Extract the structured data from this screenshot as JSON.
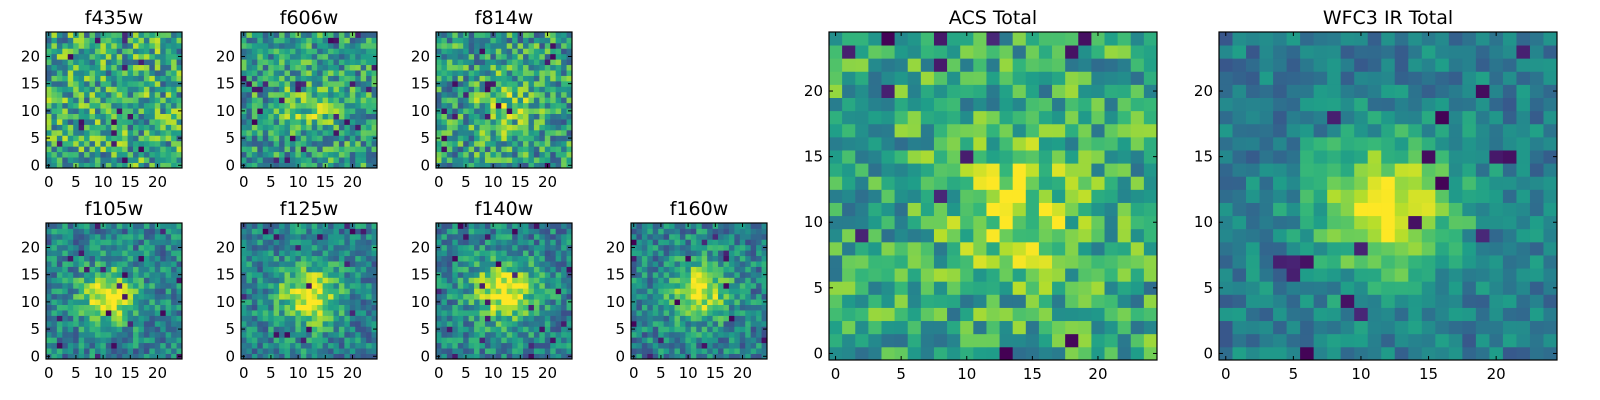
{
  "chart_data": [
    {
      "id": "f435w",
      "type": "heatmap",
      "title": "f435w",
      "grid_size": 25,
      "xlim": [
        -0.5,
        24.5
      ],
      "ylim": [
        -0.5,
        24.5
      ],
      "xticks": [
        0,
        5,
        10,
        15,
        20
      ],
      "yticks": [
        0,
        5,
        10,
        15,
        20
      ],
      "tick_labels": [
        "0",
        "5",
        "10",
        "15",
        "20"
      ],
      "colormap": "viridis",
      "center": [
        12,
        12
      ],
      "peak": 0.0,
      "sigma": 4,
      "noise": 0.32,
      "base": 0.6,
      "seed": 11
    },
    {
      "id": "f606w",
      "type": "heatmap",
      "title": "f606w",
      "grid_size": 25,
      "xlim": [
        -0.5,
        24.5
      ],
      "ylim": [
        -0.5,
        24.5
      ],
      "xticks": [
        0,
        5,
        10,
        15,
        20
      ],
      "yticks": [
        0,
        5,
        10,
        15,
        20
      ],
      "tick_labels": [
        "0",
        "5",
        "10",
        "15",
        "20"
      ],
      "colormap": "viridis",
      "center": [
        12,
        11
      ],
      "peak": 0.22,
      "sigma": 3.5,
      "noise": 0.28,
      "base": 0.55,
      "seed": 23
    },
    {
      "id": "f814w",
      "type": "heatmap",
      "title": "f814w",
      "grid_size": 25,
      "xlim": [
        -0.5,
        24.5
      ],
      "ylim": [
        -0.5,
        24.5
      ],
      "xticks": [
        0,
        5,
        10,
        15,
        20
      ],
      "yticks": [
        0,
        5,
        10,
        15,
        20
      ],
      "tick_labels": [
        "0",
        "5",
        "10",
        "15",
        "20"
      ],
      "colormap": "viridis",
      "center": [
        12,
        11
      ],
      "peak": 0.2,
      "sigma": 3.8,
      "noise": 0.3,
      "base": 0.55,
      "seed": 37
    },
    {
      "id": "f105w",
      "type": "heatmap",
      "title": "f105w",
      "grid_size": 25,
      "xlim": [
        -0.5,
        24.5
      ],
      "ylim": [
        -0.5,
        24.5
      ],
      "xticks": [
        0,
        5,
        10,
        15,
        20
      ],
      "yticks": [
        0,
        5,
        10,
        15,
        20
      ],
      "tick_labels": [
        "0",
        "5",
        "10",
        "15",
        "20"
      ],
      "colormap": "viridis",
      "center": [
        11,
        11
      ],
      "peak": 0.55,
      "sigma": 3.5,
      "noise": 0.22,
      "base": 0.45,
      "seed": 41
    },
    {
      "id": "f125w",
      "type": "heatmap",
      "title": "f125w",
      "grid_size": 25,
      "xlim": [
        -0.5,
        24.5
      ],
      "ylim": [
        -0.5,
        24.5
      ],
      "xticks": [
        0,
        5,
        10,
        15,
        20
      ],
      "yticks": [
        0,
        5,
        10,
        15,
        20
      ],
      "tick_labels": [
        "0",
        "5",
        "10",
        "15",
        "20"
      ],
      "colormap": "viridis",
      "center": [
        12,
        11
      ],
      "peak": 0.55,
      "sigma": 3.8,
      "noise": 0.22,
      "base": 0.45,
      "seed": 53
    },
    {
      "id": "f140w",
      "type": "heatmap",
      "title": "f140w",
      "grid_size": 25,
      "xlim": [
        -0.5,
        24.5
      ],
      "ylim": [
        -0.5,
        24.5
      ],
      "xticks": [
        0,
        5,
        10,
        15,
        20
      ],
      "yticks": [
        0,
        5,
        10,
        15,
        20
      ],
      "tick_labels": [
        "0",
        "5",
        "10",
        "15",
        "20"
      ],
      "colormap": "viridis",
      "center": [
        12,
        12
      ],
      "peak": 0.55,
      "sigma": 4,
      "noise": 0.22,
      "base": 0.45,
      "seed": 67
    },
    {
      "id": "f160w",
      "type": "heatmap",
      "title": "f160w",
      "grid_size": 25,
      "xlim": [
        -0.5,
        24.5
      ],
      "ylim": [
        -0.5,
        24.5
      ],
      "xticks": [
        0,
        5,
        10,
        15,
        20
      ],
      "yticks": [
        0,
        5,
        10,
        15,
        20
      ],
      "tick_labels": [
        "0",
        "5",
        "10",
        "15",
        "20"
      ],
      "colormap": "viridis",
      "center": [
        12,
        12
      ],
      "peak": 0.55,
      "sigma": 3.5,
      "noise": 0.22,
      "base": 0.45,
      "seed": 79
    },
    {
      "id": "acs_total",
      "type": "heatmap",
      "title": "ACS Total",
      "grid_size": 25,
      "xlim": [
        -0.5,
        24.5
      ],
      "ylim": [
        -0.5,
        24.5
      ],
      "xticks": [
        0,
        5,
        10,
        15,
        20
      ],
      "yticks": [
        0,
        5,
        10,
        15,
        20
      ],
      "tick_labels": [
        "0",
        "5",
        "10",
        "15",
        "20"
      ],
      "colormap": "viridis",
      "center": [
        14,
        11
      ],
      "peak": 0.3,
      "sigma": 3.5,
      "noise": 0.25,
      "base": 0.6,
      "seed": 97
    },
    {
      "id": "wfc3_ir_total",
      "type": "heatmap",
      "title": "WFC3 IR Total",
      "grid_size": 25,
      "xlim": [
        -0.5,
        24.5
      ],
      "ylim": [
        -0.5,
        24.5
      ],
      "xticks": [
        0,
        5,
        10,
        15,
        20
      ],
      "yticks": [
        0,
        5,
        10,
        15,
        20
      ],
      "tick_labels": [
        "0",
        "5",
        "10",
        "15",
        "20"
      ],
      "colormap": "viridis",
      "center": [
        12,
        11
      ],
      "peak": 0.6,
      "sigma": 3.8,
      "noise": 0.15,
      "base": 0.42,
      "seed": 101
    }
  ]
}
